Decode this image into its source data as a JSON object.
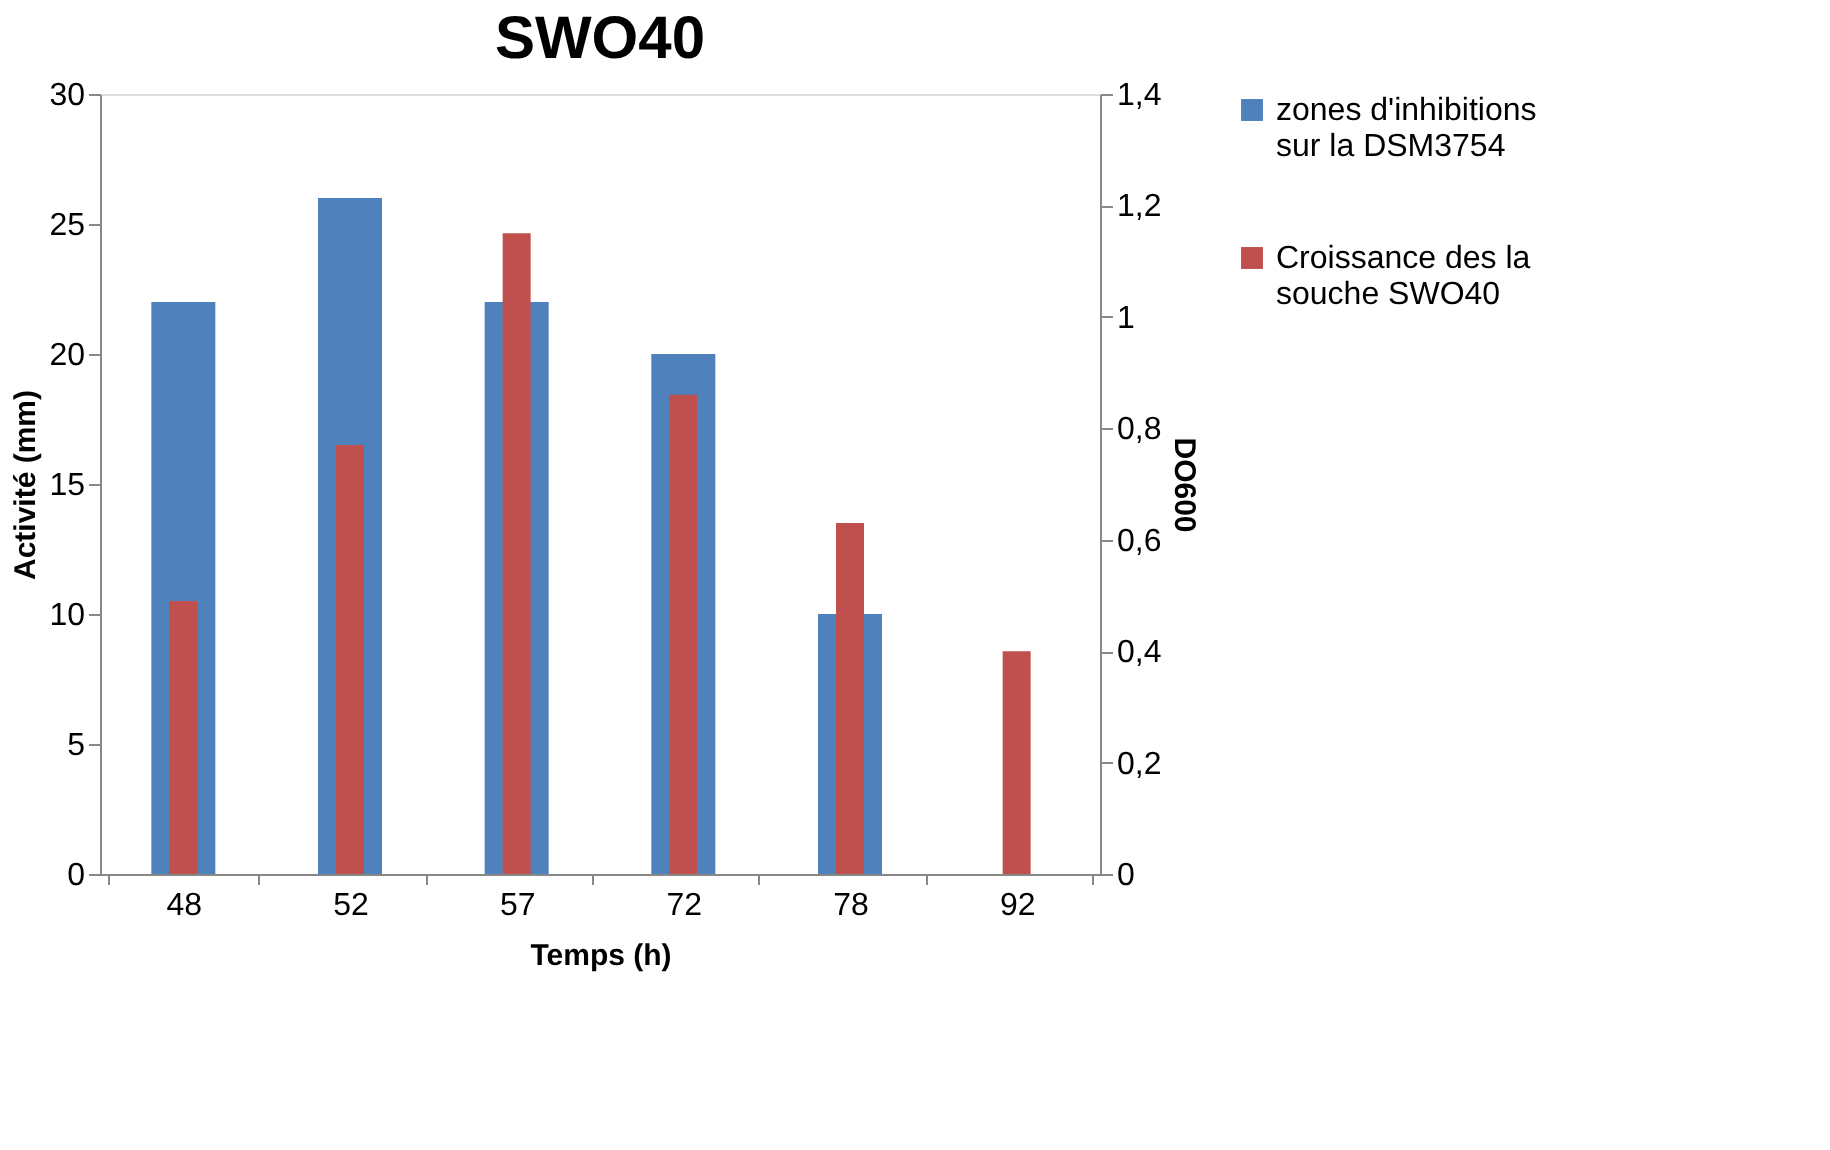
{
  "chart_data": {
    "type": "bar",
    "title": "SWO40",
    "xlabel": "Temps (h)",
    "ylabel": "Activité (mm)",
    "y2label": "DO600",
    "categories": [
      "48",
      "52",
      "57",
      "72",
      "78",
      "92"
    ],
    "series": [
      {
        "name": "zones d'inhibitions sur la DSM3754",
        "color": "#4f81bd",
        "values": [
          22,
          26,
          22,
          20,
          10,
          null
        ]
      },
      {
        "name": "Croissance des la souche SWO40",
        "color": "#c0504d",
        "axis": "y2",
        "values": [
          0.49,
          0.77,
          1.15,
          0.86,
          0.63,
          0.4
        ]
      }
    ],
    "ylim": [
      0,
      30
    ],
    "yticks": [
      0,
      5,
      10,
      15,
      20,
      25,
      30
    ],
    "y2lim": [
      0,
      1.4
    ],
    "y2ticks": [
      0,
      {
        "value": 0.2,
        "label": "0,2"
      },
      {
        "value": 0.4,
        "label": "0,4"
      },
      {
        "value": 0.6,
        "label": "0,6"
      },
      {
        "value": 0.8,
        "label": "0,8"
      },
      1,
      {
        "value": 1.2,
        "label": "1,2"
      },
      {
        "value": 1.4,
        "label": "1,4"
      }
    ],
    "grid": false,
    "legend": "right"
  }
}
